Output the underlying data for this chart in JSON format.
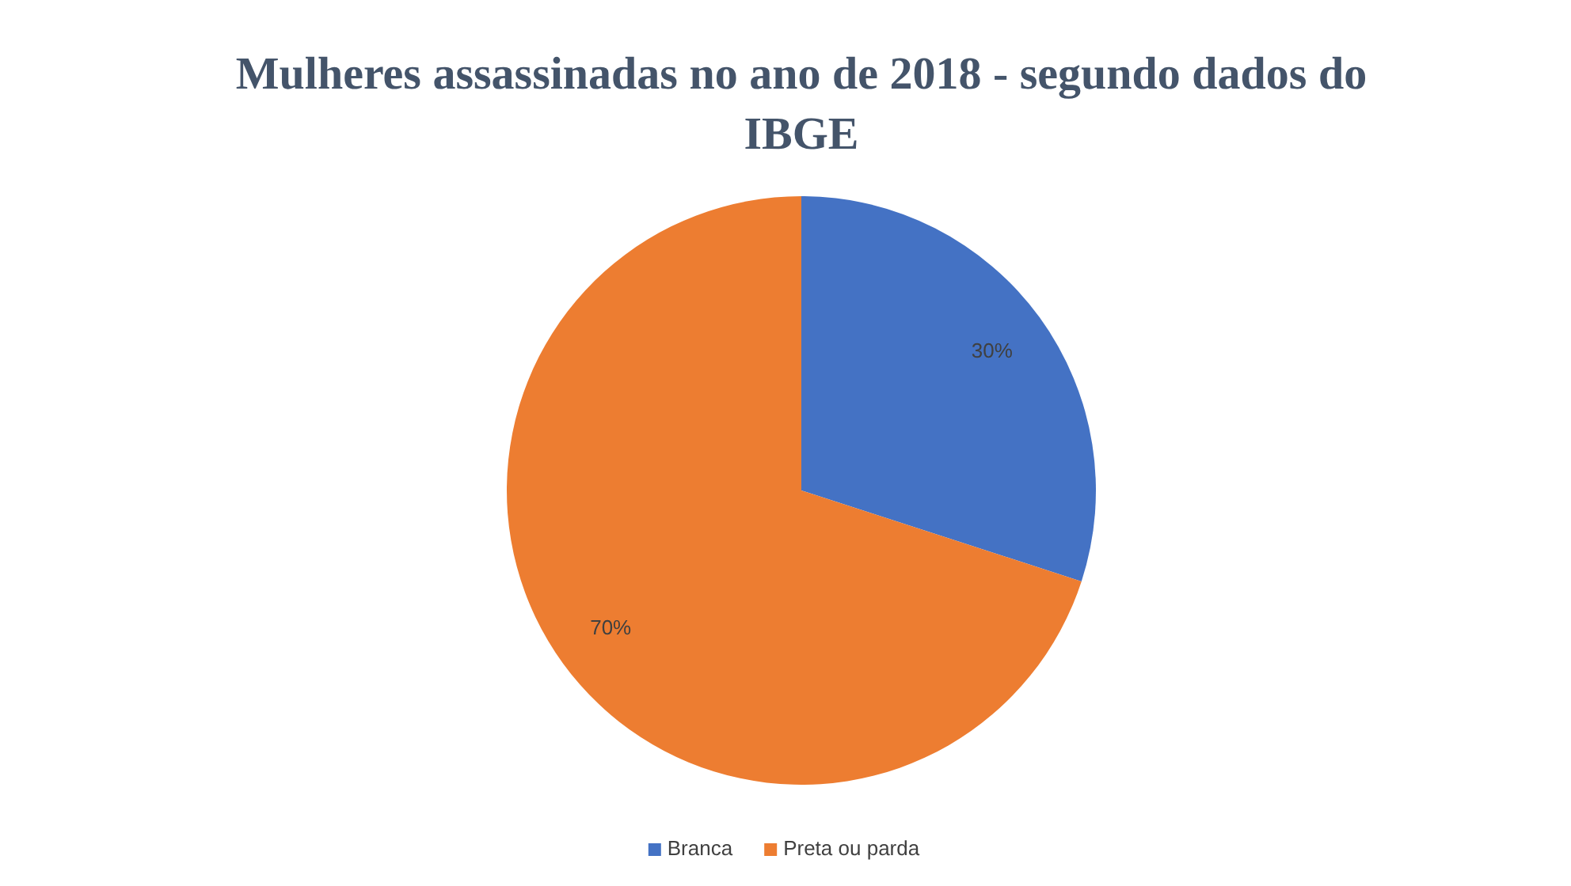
{
  "chart_data": {
    "type": "pie",
    "title": "Mulheres assassinadas no ano de 2018 - segundo dados do IBGE",
    "categories": [
      "Branca",
      "Preta ou parda"
    ],
    "values": [
      30,
      70
    ],
    "colors": [
      "#4472c4",
      "#ed7d31"
    ],
    "value_labels": [
      "30%",
      "70%"
    ],
    "legend": "bottom"
  }
}
